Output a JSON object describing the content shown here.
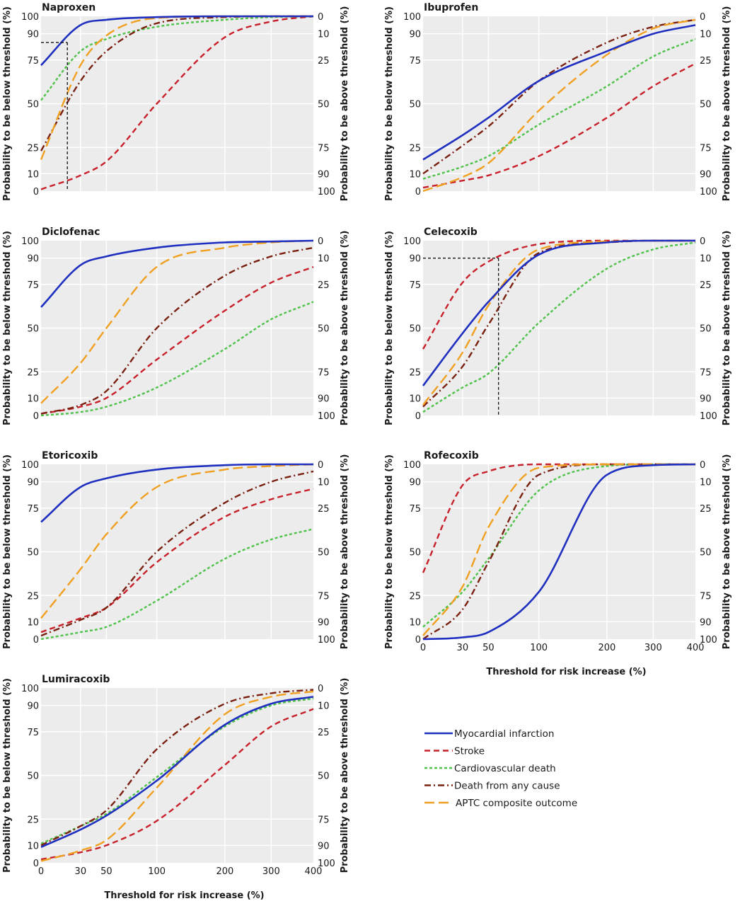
{
  "figure": {
    "y_left_label": "Probability to be below threshold (%)",
    "y_right_label": "Probability to be above threshold (%)",
    "x_axis_label": "Threshold for risk increase (%)"
  },
  "legend": [
    {
      "name": "Myocardial infarction",
      "color": "#1f2fbf",
      "dash": "solid"
    },
    {
      "name": "Stroke",
      "color": "#c8202a",
      "dash": "dashed"
    },
    {
      "name": "Cardiovascular death",
      "color": "#4fc24a",
      "dash": "dotted"
    },
    {
      "name": "Death from any cause",
      "color": "#7a2010",
      "dash": "dashdot"
    },
    {
      "name": "APTC composite outcome",
      "color": "#f0a020",
      "dash": "longdash"
    }
  ],
  "chart_data": [
    {
      "type": "line",
      "title": "Naproxen",
      "xlabel": "",
      "ylabel": "Probability to be below threshold (%)",
      "y2label": "Probability to be above threshold (%)",
      "x": [
        0,
        30,
        50,
        100,
        200,
        300,
        400
      ],
      "xticks": [],
      "yticks_left": [
        0,
        10,
        25,
        50,
        75,
        90,
        100
      ],
      "yticks_right": [
        100,
        90,
        75,
        50,
        25,
        10,
        0
      ],
      "ylim": [
        0,
        100
      ],
      "series": [
        {
          "name": "Myocardial infarction",
          "values": [
            72,
            95,
            98,
            99.5,
            100,
            100,
            100
          ]
        },
        {
          "name": "Stroke",
          "values": [
            1,
            9,
            17,
            50,
            88,
            97,
            100
          ]
        },
        {
          "name": "Cardiovascular death",
          "values": [
            52,
            80,
            87,
            94,
            98,
            99.5,
            100
          ]
        },
        {
          "name": "Death from any cause",
          "values": [
            23,
            63,
            80,
            96,
            99.5,
            100,
            100
          ]
        },
        {
          "name": "APTC composite outcome",
          "values": [
            18,
            72,
            89,
            99,
            100,
            100,
            100
          ]
        }
      ],
      "reference": {
        "x": 20,
        "y": 85
      }
    },
    {
      "type": "line",
      "title": "Ibuprofen",
      "xlabel": "",
      "ylabel": "Probability to be below threshold (%)",
      "y2label": "Probability to be above threshold (%)",
      "x": [
        0,
        30,
        50,
        100,
        200,
        300,
        400
      ],
      "xticks": [],
      "yticks_left": [
        0,
        10,
        25,
        50,
        75,
        90,
        100
      ],
      "yticks_right": [
        100,
        90,
        75,
        50,
        25,
        10,
        0
      ],
      "ylim": [
        0,
        100
      ],
      "series": [
        {
          "name": "Myocardial infarction",
          "values": [
            18,
            32,
            42,
            63,
            80,
            90,
            95
          ]
        },
        {
          "name": "Stroke",
          "values": [
            2,
            6,
            9,
            20,
            42,
            60,
            73
          ]
        },
        {
          "name": "Cardiovascular death",
          "values": [
            7,
            14,
            20,
            38,
            60,
            77,
            87
          ]
        },
        {
          "name": "Death from any cause",
          "values": [
            10,
            26,
            37,
            63,
            85,
            94,
            98
          ]
        },
        {
          "name": "APTC composite outcome",
          "values": [
            0,
            8,
            16,
            46,
            78,
            93,
            98
          ]
        }
      ]
    },
    {
      "type": "line",
      "title": "Diclofenac",
      "xlabel": "",
      "ylabel": "Probability to be below threshold (%)",
      "y2label": "Probability to be above threshold (%)",
      "x": [
        0,
        30,
        50,
        100,
        200,
        300,
        400
      ],
      "xticks": [],
      "yticks_left": [
        0,
        10,
        25,
        50,
        75,
        90,
        100
      ],
      "yticks_right": [
        100,
        90,
        75,
        50,
        25,
        10,
        0
      ],
      "ylim": [
        0,
        100
      ],
      "series": [
        {
          "name": "Myocardial infarction",
          "values": [
            62,
            86,
            91,
            96,
            99,
            99.5,
            100
          ]
        },
        {
          "name": "Stroke",
          "values": [
            1,
            5,
            10,
            32,
            60,
            76,
            85
          ]
        },
        {
          "name": "Cardiovascular death",
          "values": [
            0,
            2,
            5,
            16,
            38,
            55,
            65
          ]
        },
        {
          "name": "Death from any cause",
          "values": [
            1,
            6,
            14,
            50,
            80,
            91,
            96
          ]
        },
        {
          "name": "APTC composite outcome",
          "values": [
            7,
            30,
            50,
            85,
            96,
            99,
            100
          ]
        }
      ]
    },
    {
      "type": "line",
      "title": "Celecoxib",
      "xlabel": "",
      "ylabel": "Probability to be below threshold (%)",
      "y2label": "Probability to be above threshold (%)",
      "x": [
        0,
        30,
        50,
        100,
        200,
        300,
        400
      ],
      "xticks": [],
      "yticks_left": [
        0,
        10,
        25,
        50,
        75,
        90,
        100
      ],
      "yticks_right": [
        100,
        90,
        75,
        50,
        25,
        10,
        0
      ],
      "ylim": [
        0,
        100
      ],
      "series": [
        {
          "name": "Myocardial infarction",
          "values": [
            17,
            47,
            65,
            92,
            99,
            100,
            100
          ]
        },
        {
          "name": "Stroke",
          "values": [
            38,
            76,
            88,
            98,
            100,
            100,
            100
          ]
        },
        {
          "name": "Cardiovascular death",
          "values": [
            2,
            16,
            24,
            53,
            84,
            95,
            99
          ]
        },
        {
          "name": "Death from any cause",
          "values": [
            5,
            28,
            52,
            93,
            99,
            100,
            100
          ]
        },
        {
          "name": "APTC composite outcome",
          "values": [
            6,
            36,
            63,
            95,
            99.5,
            100,
            100
          ]
        }
      ],
      "reference": {
        "x": 60,
        "y": 90
      }
    },
    {
      "type": "line",
      "title": "Etoricoxib",
      "xlabel": "",
      "ylabel": "Probability to be below threshold (%)",
      "y2label": "Probability to be above threshold (%)",
      "x": [
        0,
        30,
        50,
        100,
        200,
        300,
        400
      ],
      "xticks": [],
      "yticks_left": [
        0,
        10,
        25,
        50,
        75,
        90,
        100
      ],
      "yticks_right": [
        100,
        90,
        75,
        50,
        25,
        10,
        0
      ],
      "ylim": [
        0,
        100
      ],
      "series": [
        {
          "name": "Myocardial infarction",
          "values": [
            67,
            87,
            92,
            97,
            99.5,
            100,
            100
          ]
        },
        {
          "name": "Stroke",
          "values": [
            4,
            12,
            18,
            44,
            70,
            80,
            86
          ]
        },
        {
          "name": "Cardiovascular death",
          "values": [
            0,
            4,
            7,
            22,
            46,
            57,
            63
          ]
        },
        {
          "name": "Death from any cause",
          "values": [
            2,
            11,
            18,
            50,
            78,
            90,
            96
          ]
        },
        {
          "name": "APTC composite outcome",
          "values": [
            12,
            40,
            60,
            87,
            97,
            99,
            100
          ]
        }
      ]
    },
    {
      "type": "line",
      "title": "Rofecoxib",
      "xlabel": "Threshold for risk increase (%)",
      "ylabel": "Probability to be below threshold (%)",
      "y2label": "Probability to be above threshold (%)",
      "x": [
        0,
        30,
        50,
        100,
        200,
        300,
        400
      ],
      "xticks": [
        0,
        30,
        50,
        100,
        200,
        300,
        400
      ],
      "yticks_left": [
        0,
        10,
        25,
        50,
        75,
        90,
        100
      ],
      "yticks_right": [
        100,
        90,
        75,
        50,
        25,
        10,
        0
      ],
      "ylim": [
        0,
        100
      ],
      "series": [
        {
          "name": "Myocardial infarction",
          "values": [
            0,
            1,
            4,
            27,
            94,
            99.5,
            100
          ]
        },
        {
          "name": "Stroke",
          "values": [
            38,
            88,
            96,
            100,
            100,
            100,
            100
          ]
        },
        {
          "name": "Cardiovascular death",
          "values": [
            7,
            27,
            46,
            85,
            99,
            100,
            100
          ]
        },
        {
          "name": "Death from any cause",
          "values": [
            0,
            17,
            44,
            94,
            100,
            100,
            100
          ]
        },
        {
          "name": "APTC composite outcome",
          "values": [
            2,
            30,
            64,
            98,
            100,
            100,
            100
          ]
        }
      ]
    },
    {
      "type": "line",
      "title": "Lumiracoxib",
      "xlabel": "Threshold for risk increase (%)",
      "ylabel": "Probability to be below threshold (%)",
      "y2label": "Probability to be above threshold (%)",
      "x": [
        0,
        30,
        50,
        100,
        200,
        300,
        400
      ],
      "xticks": [
        0,
        30,
        50,
        100,
        200,
        300,
        400
      ],
      "yticks_left": [
        0,
        10,
        25,
        50,
        75,
        90,
        100
      ],
      "yticks_right": [
        100,
        90,
        75,
        50,
        25,
        10,
        0
      ],
      "ylim": [
        0,
        100
      ],
      "series": [
        {
          "name": "Myocardial infarction",
          "values": [
            9,
            19,
            27,
            47,
            79,
            91,
            95
          ]
        },
        {
          "name": "Stroke",
          "values": [
            2,
            6,
            10,
            24,
            56,
            78,
            88
          ]
        },
        {
          "name": "Cardiovascular death",
          "values": [
            11,
            21,
            28,
            49,
            78,
            90,
            94
          ]
        },
        {
          "name": "Death from any cause",
          "values": [
            10,
            21,
            30,
            65,
            91,
            97,
            99
          ]
        },
        {
          "name": "APTC composite outcome",
          "values": [
            1,
            7,
            13,
            43,
            85,
            95,
            98
          ]
        }
      ]
    }
  ]
}
